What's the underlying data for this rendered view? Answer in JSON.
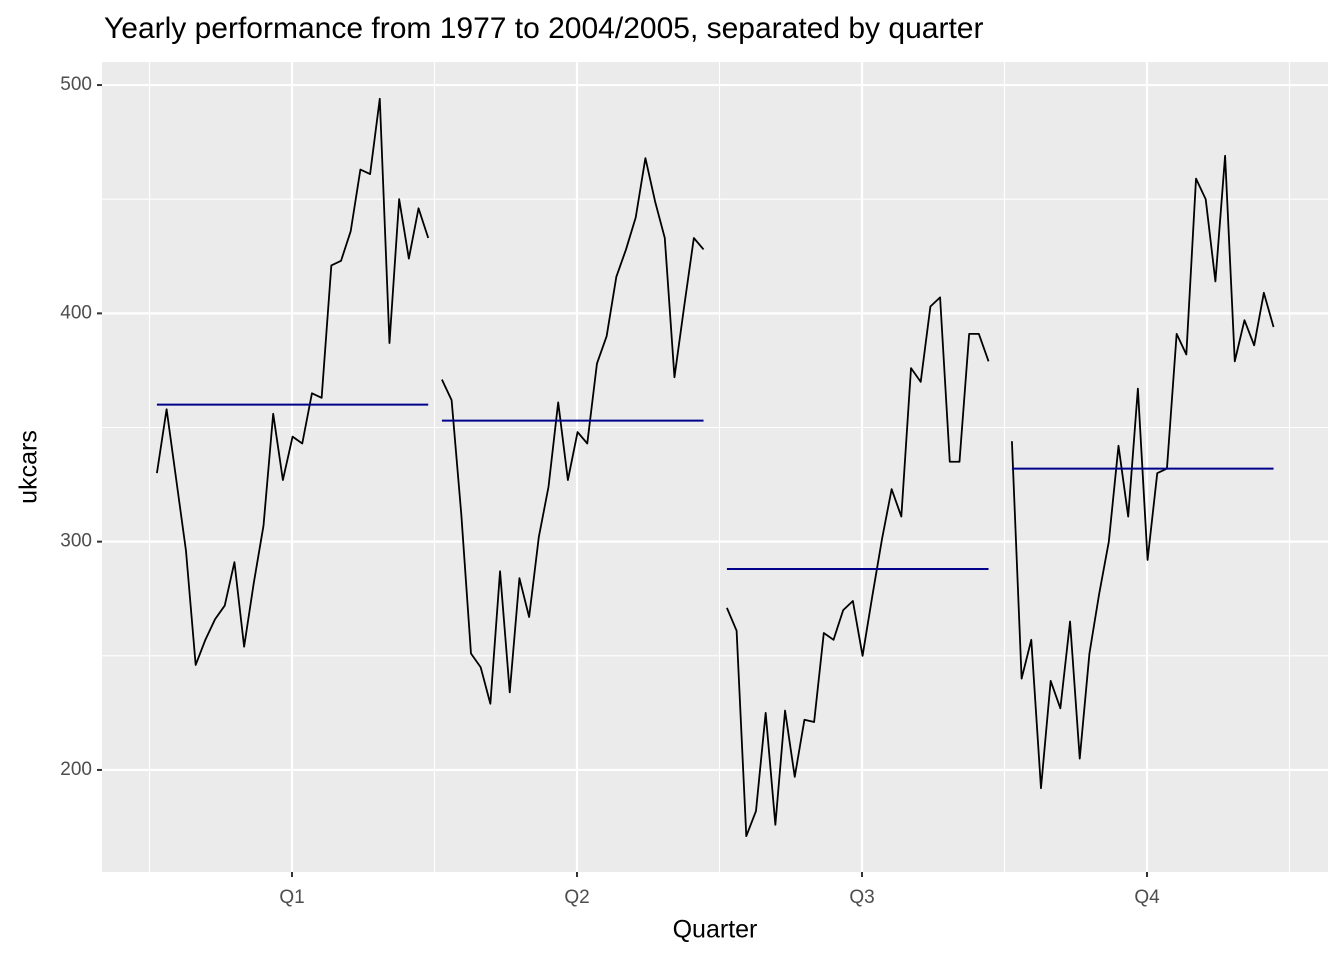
{
  "chart_data": {
    "type": "subseries",
    "title": "Yearly performance from 1977 to 2004/2005, separated by quarter",
    "x_label": "Quarter",
    "y_label": "ukcars",
    "categories": [
      "Q1",
      "Q2",
      "Q3",
      "Q4"
    ],
    "subseries": [
      [
        330,
        358,
        327,
        296,
        246,
        257,
        266,
        272,
        291,
        254,
        282,
        307,
        356,
        327,
        346,
        343,
        365,
        363,
        421,
        423,
        436,
        463,
        461,
        494,
        387,
        450,
        424,
        446,
        433
      ],
      [
        371,
        362,
        312,
        251,
        245,
        229,
        287,
        234,
        284,
        267,
        302,
        324,
        361,
        327,
        348,
        343,
        378,
        390,
        416,
        428,
        442,
        468,
        449,
        433,
        372,
        403,
        433,
        428
      ],
      [
        271,
        261,
        171,
        182,
        225,
        176,
        226,
        197,
        222,
        221,
        260,
        257,
        270,
        274,
        250,
        276,
        301,
        323,
        311,
        376,
        370,
        403,
        407,
        335,
        335,
        391,
        391,
        379
      ],
      [
        344,
        240,
        257,
        192,
        239,
        227,
        265,
        205,
        251,
        277,
        300,
        342,
        311,
        367,
        292,
        330,
        332,
        391,
        382,
        459,
        450,
        414,
        469,
        379,
        397,
        386,
        409,
        394
      ]
    ],
    "means": [
      360,
      353,
      288,
      332
    ],
    "line_color": "#000000",
    "mean_color": "#00008b",
    "ylim": [
      155.3,
      510.1
    ],
    "yticks": [
      200,
      300,
      400,
      500
    ],
    "minor_yticks": [
      250,
      350,
      450
    ],
    "grid": true
  }
}
